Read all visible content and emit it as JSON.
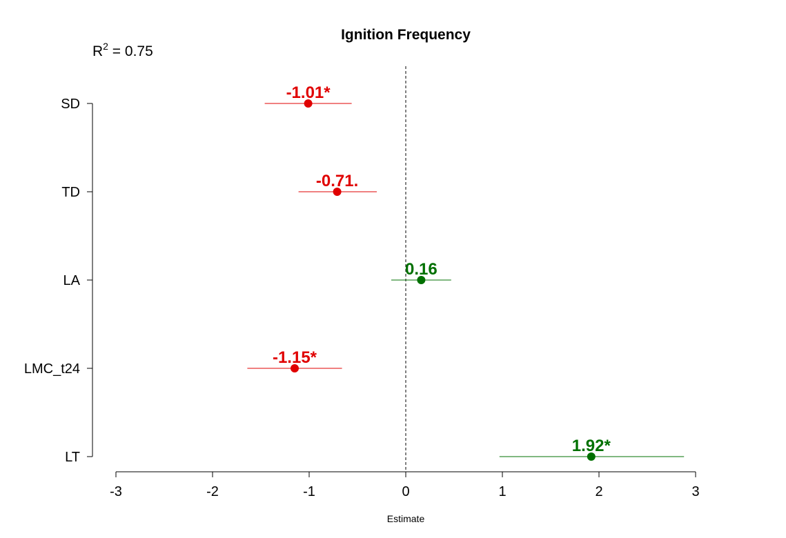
{
  "chart_data": {
    "type": "scatter",
    "title": "Ignition Frequency",
    "annotation": {
      "r2_prefix": "R",
      "r2_sup": "2",
      "r2_value": " = 0.75"
    },
    "xlabel": "Estimate",
    "ylabel": "",
    "xlim": [
      -3,
      3
    ],
    "xticks": [
      -3,
      -2,
      -1,
      0,
      1,
      2,
      3
    ],
    "xtick_labels": [
      "-3",
      "-2",
      "-1",
      "0",
      "1",
      "2",
      "3"
    ],
    "reference_line": 0,
    "grid": false,
    "legend": "none",
    "colors": {
      "negative": "#e00000",
      "positive": "#007000"
    },
    "categories": [
      "SD",
      "TD",
      "LA",
      "LMC_t24",
      "LT"
    ],
    "points": [
      {
        "label": "SD",
        "estimate": -1.01,
        "ci_low": -1.46,
        "ci_high": -0.56,
        "text": "-1.01*",
        "sign": "negative"
      },
      {
        "label": "TD",
        "estimate": -0.71,
        "ci_low": -1.11,
        "ci_high": -0.3,
        "text": "-0.71.",
        "sign": "negative"
      },
      {
        "label": "LA",
        "estimate": 0.16,
        "ci_low": -0.15,
        "ci_high": 0.47,
        "text": "0.16",
        "sign": "positive"
      },
      {
        "label": "LMC_t24",
        "estimate": -1.15,
        "ci_low": -1.64,
        "ci_high": -0.66,
        "text": "-1.15*",
        "sign": "negative"
      },
      {
        "label": "LT",
        "estimate": 1.92,
        "ci_low": 0.97,
        "ci_high": 2.88,
        "text": "1.92*",
        "sign": "positive"
      }
    ]
  }
}
